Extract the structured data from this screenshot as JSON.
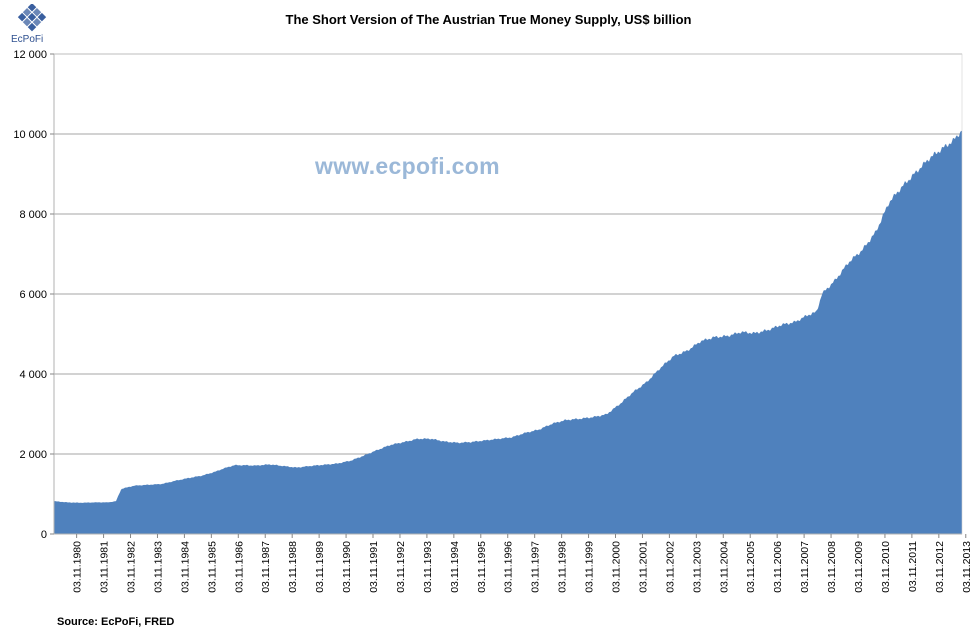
{
  "logo": {
    "text": "EcPoFi",
    "color": "#2d4f8f"
  },
  "watermark": "www.ecpofi.com",
  "source": "Source: EcPoFi,  FRED",
  "chart_data": {
    "type": "area",
    "title": "The Short Version of The Austrian True Money Supply, US$ billion",
    "xlabel": "",
    "ylabel": "",
    "ylim": [
      0,
      12000
    ],
    "yticks": [
      0,
      2000,
      4000,
      6000,
      8000,
      10000,
      12000
    ],
    "ytick_labels": [
      "0",
      "2 000",
      "4 000",
      "6 000",
      "8 000",
      "10 000",
      "12 000"
    ],
    "x_start_year": 1980,
    "x_end_year": 2013.7,
    "xtick_labels": [
      "03.11.1980",
      "03.11.1981",
      "03.11.1982",
      "03.11.1983",
      "03.11.1984",
      "03.11.1985",
      "03.11.1986",
      "03.11.1987",
      "03.11.1988",
      "03.11.1989",
      "03.11.1990",
      "03.11.1991",
      "03.11.1992",
      "03.11.1993",
      "03.11.1994",
      "03.11.1995",
      "03.11.1996",
      "03.11.1997",
      "03.11.1998",
      "03.11.1999",
      "03.11.2000",
      "03.11.2001",
      "03.11.2002",
      "03.11.2003",
      "03.11.2004",
      "03.11.2005",
      "03.11.2006",
      "03.11.2007",
      "03.11.2008",
      "03.11.2009",
      "03.11.2010",
      "03.11.2011",
      "03.11.2012",
      "03.11.2013"
    ],
    "grid": true,
    "color": "#4f81bd",
    "series": [
      {
        "name": "",
        "x": [
          1980.0,
          1980.5,
          1981.0,
          1981.5,
          1982.0,
          1982.3,
          1982.5,
          1983.0,
          1983.5,
          1984.0,
          1984.5,
          1985.0,
          1985.5,
          1986.0,
          1986.3,
          1986.7,
          1987.0,
          1987.5,
          1988.0,
          1988.5,
          1989.0,
          1989.5,
          1990.0,
          1990.5,
          1991.0,
          1991.5,
          1992.0,
          1992.5,
          1993.0,
          1993.5,
          1994.0,
          1994.5,
          1995.0,
          1995.5,
          1996.0,
          1996.5,
          1997.0,
          1997.5,
          1998.0,
          1998.5,
          1999.0,
          1999.5,
          2000.0,
          2000.5,
          2001.0,
          2001.5,
          2002.0,
          2002.5,
          2003.0,
          2003.5,
          2004.0,
          2004.5,
          2005.0,
          2005.5,
          2006.0,
          2006.5,
          2007.0,
          2007.5,
          2008.0,
          2008.3,
          2008.5,
          2009.0,
          2009.5,
          2010.0,
          2010.5,
          2011.0,
          2011.5,
          2012.0,
          2012.5,
          2013.0,
          2013.4,
          2013.7
        ],
        "values": [
          820,
          790,
          780,
          790,
          790,
          820,
          1130,
          1210,
          1230,
          1250,
          1330,
          1400,
          1460,
          1560,
          1640,
          1720,
          1720,
          1710,
          1740,
          1700,
          1660,
          1700,
          1730,
          1760,
          1830,
          1960,
          2100,
          2230,
          2300,
          2380,
          2380,
          2310,
          2280,
          2300,
          2340,
          2380,
          2420,
          2530,
          2610,
          2760,
          2850,
          2880,
          2920,
          2990,
          3250,
          3550,
          3800,
          4150,
          4450,
          4580,
          4820,
          4920,
          4950,
          5050,
          5020,
          5100,
          5230,
          5300,
          5480,
          5550,
          6000,
          6350,
          6800,
          7100,
          7550,
          8300,
          8700,
          9050,
          9400,
          9650,
          9850,
          10100
        ]
      }
    ]
  }
}
